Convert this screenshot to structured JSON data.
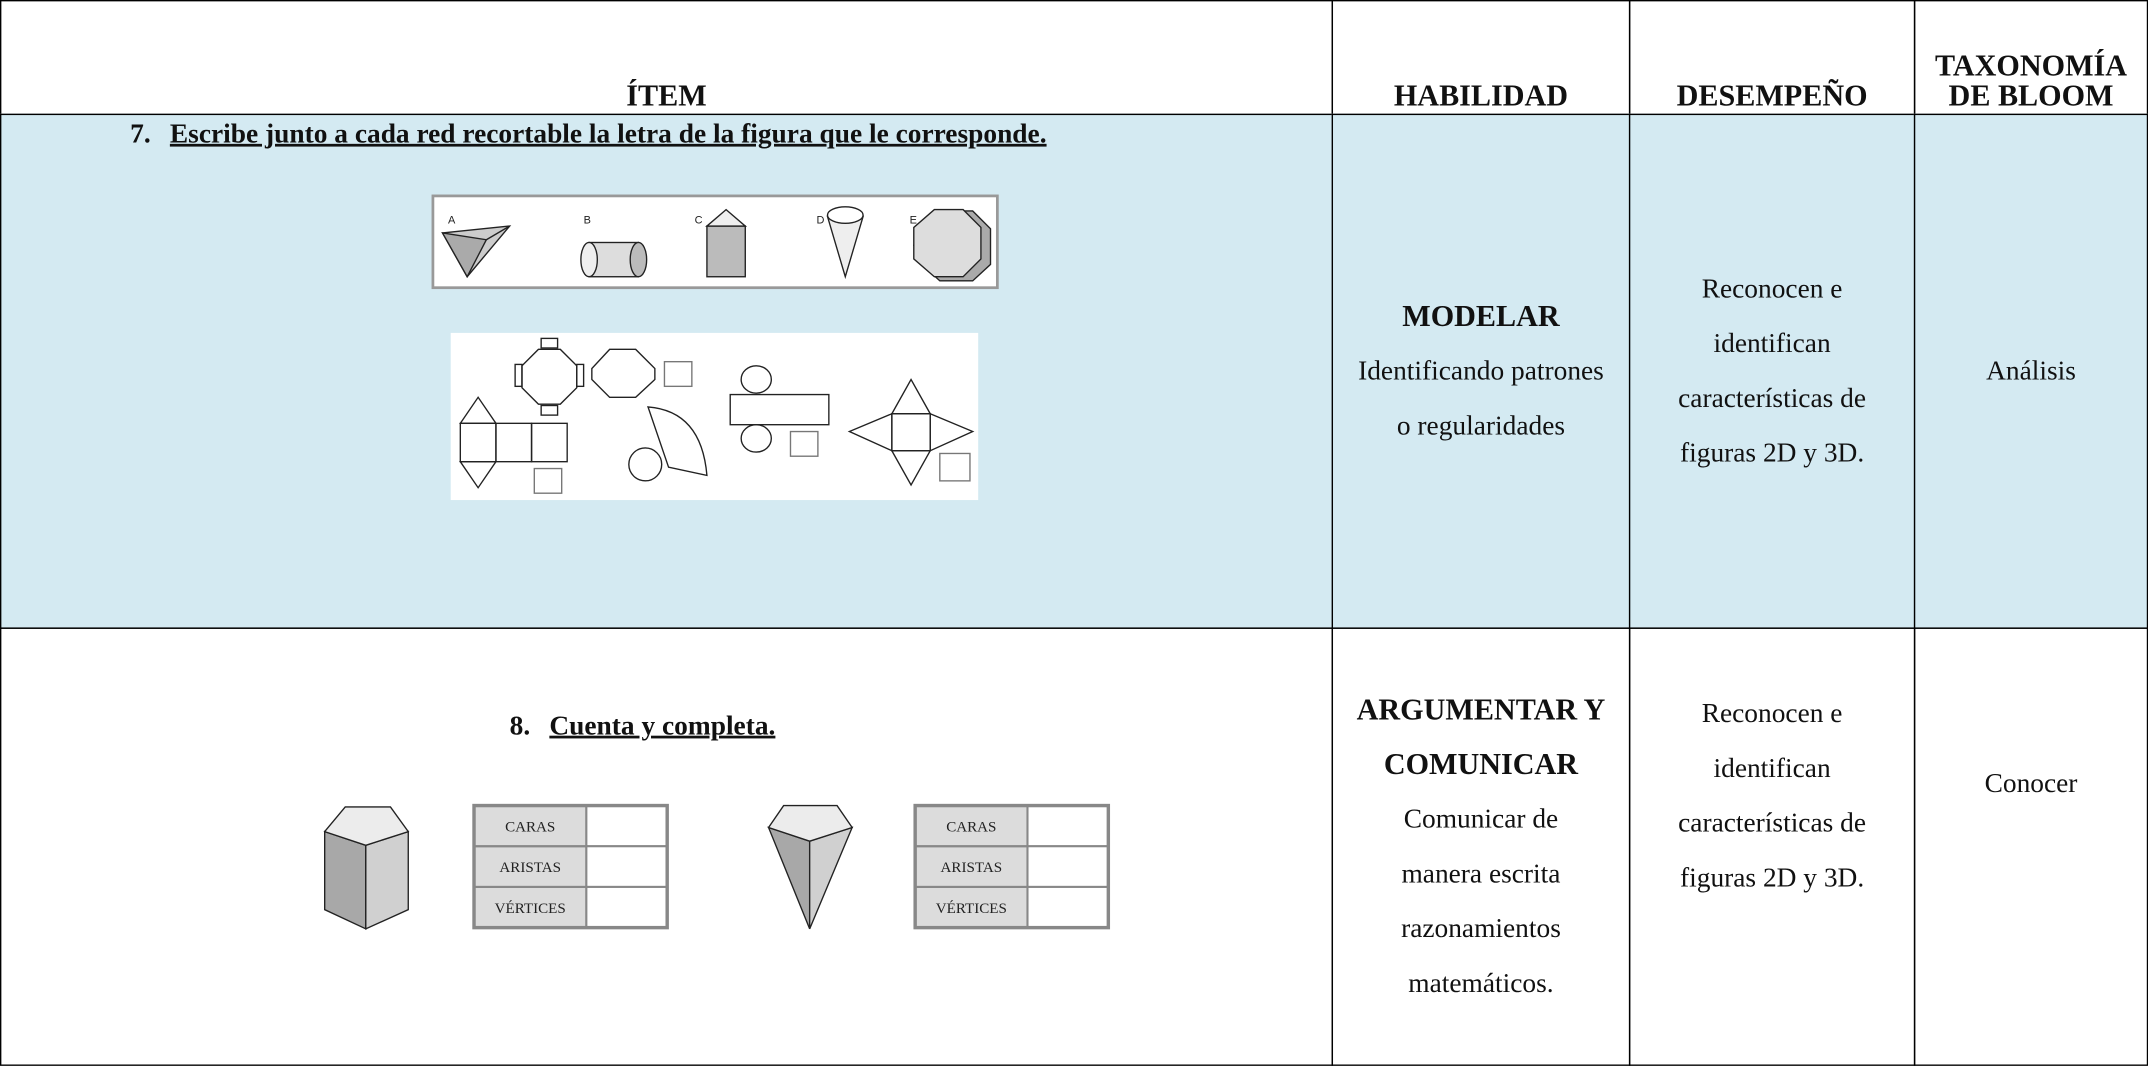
{
  "header": {
    "item": "ÍTEM",
    "habilidad": "HABILIDAD",
    "desempeno": "DESEMPEÑO",
    "taxonomia": "TAXONOMÍA DE BLOOM"
  },
  "rows": [
    {
      "number": "7.",
      "question": "Escribe junto a cada red recortable la letra de la figura que le corresponde.",
      "figure_labels": [
        "A",
        "B",
        "C",
        "D",
        "E"
      ],
      "habilidad_title": "MODELAR",
      "habilidad_text": "Identificando patrones o regularidades",
      "desempeno": "Reconocen e identifican características de figuras 2D y 3D.",
      "taxonomia": "Análisis"
    },
    {
      "number": "8.",
      "question": "Cuenta y completa.",
      "count_labels": [
        "CARAS",
        "ARISTAS",
        "VÉRTICES"
      ],
      "habilidad_title": "ARGUMENTAR Y COMUNICAR",
      "habilidad_text": "Comunicar de manera escrita razonamientos matemáticos.",
      "desempeno": "Reconocen e identifican características de figuras 2D y 3D.",
      "taxonomia": "Conocer"
    }
  ]
}
